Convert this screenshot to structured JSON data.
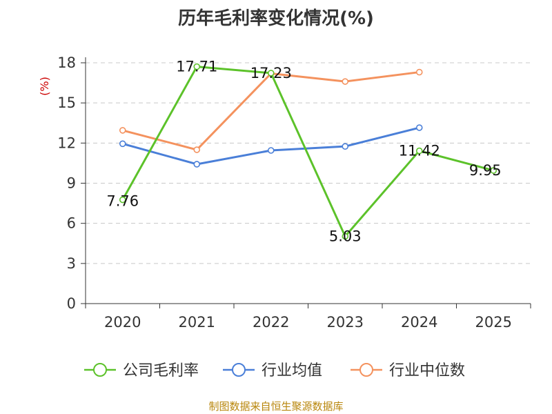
{
  "chart_data": {
    "type": "line",
    "title": "历年毛利率变化情况(%)",
    "ylabel": "(%)",
    "categories": [
      "2020",
      "2021",
      "2022",
      "2023",
      "2024",
      "2025"
    ],
    "ylim": [
      0,
      18
    ],
    "yticks": [
      0,
      3,
      6,
      9,
      12,
      15,
      18
    ],
    "grid": true,
    "legend_position": "bottom",
    "series": [
      {
        "name": "公司毛利率",
        "color": "#5cc22a",
        "values": [
          7.76,
          17.71,
          17.23,
          5.03,
          11.42,
          9.95
        ],
        "labels": [
          "7.76",
          "17.71",
          "17.23",
          "5.03",
          "11.42",
          "9.95"
        ]
      },
      {
        "name": "行业均值",
        "color": "#4a7fd8",
        "values": [
          11.95,
          10.42,
          11.45,
          11.75,
          13.15,
          null
        ]
      },
      {
        "name": "行业中位数",
        "color": "#f4925e",
        "values": [
          12.95,
          11.5,
          17.2,
          16.6,
          17.3,
          null
        ]
      }
    ]
  },
  "source": "制图数据来自恒生聚源数据库"
}
